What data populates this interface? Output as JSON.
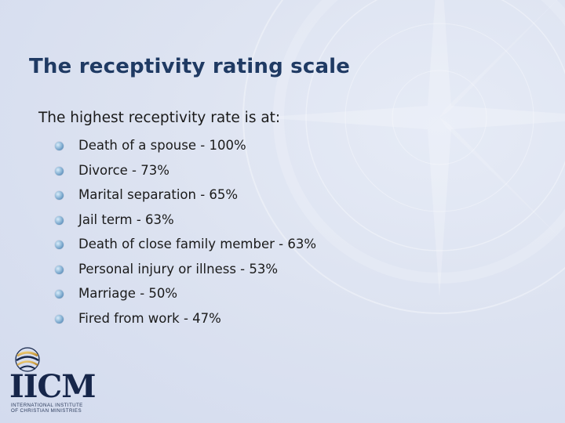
{
  "slide": {
    "title": "The receptivity rating scale",
    "intro": "The highest receptivity rate is at:",
    "items": [
      {
        "label": "Death of a spouse - 100%"
      },
      {
        "label": "Divorce - 73%"
      },
      {
        "label": "Marital separation - 65%"
      },
      {
        "label": "Jail term - 63%"
      },
      {
        "label": "Death of close family member - 63%"
      },
      {
        "label": "Personal injury or illness - 53%"
      },
      {
        "label": "Marriage - 50%"
      },
      {
        "label": "Fired from work - 47%"
      }
    ]
  },
  "logo": {
    "acronym": "IICM",
    "subtitle_line1": "INTERNATIONAL INSTITUTE",
    "subtitle_line2": "OF CHRISTIAN MINISTRIES"
  },
  "colors": {
    "title": "#1f3a63",
    "text": "#1a1a1a",
    "bullet": "#6a9ccb",
    "background": "#dde3f1"
  }
}
